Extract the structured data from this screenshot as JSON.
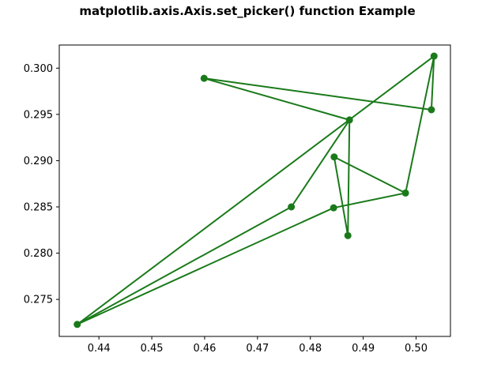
{
  "chart_data": {
    "type": "line",
    "title": "matplotlib.axis.Axis.set_picker() function Example",
    "xlabel": "",
    "ylabel": "",
    "xlim": [
      0.4325,
      0.5065
    ],
    "ylim": [
      0.271,
      0.3025
    ],
    "x_ticks": [
      0.44,
      0.45,
      0.46,
      0.47,
      0.48,
      0.49,
      0.5
    ],
    "y_ticks": [
      0.275,
      0.28,
      0.285,
      0.29,
      0.295,
      0.3
    ],
    "x_tick_labels": [
      "0.44",
      "0.45",
      "0.46",
      "0.47",
      "0.48",
      "0.49",
      "0.50"
    ],
    "y_tick_labels": [
      "0.275",
      "0.280",
      "0.285",
      "0.290",
      "0.295",
      "0.300"
    ],
    "grid": false,
    "series": [
      {
        "color": "#1a7a1a",
        "marker": "circle",
        "x": [
          0.4599,
          0.5029,
          0.5034,
          0.4359,
          0.4844,
          0.498,
          0.4845,
          0.4871,
          0.4874,
          0.4764
        ],
        "y": [
          0.2989,
          0.2955,
          0.3013,
          0.2723,
          0.2849,
          0.2865,
          0.2904,
          0.2819,
          0.2944,
          0.285
        ]
      }
    ],
    "extra_segments": [
      {
        "from": 9,
        "to": 3
      },
      {
        "from": 0,
        "to": 8
      },
      {
        "from": 2,
        "to": 5
      }
    ]
  }
}
